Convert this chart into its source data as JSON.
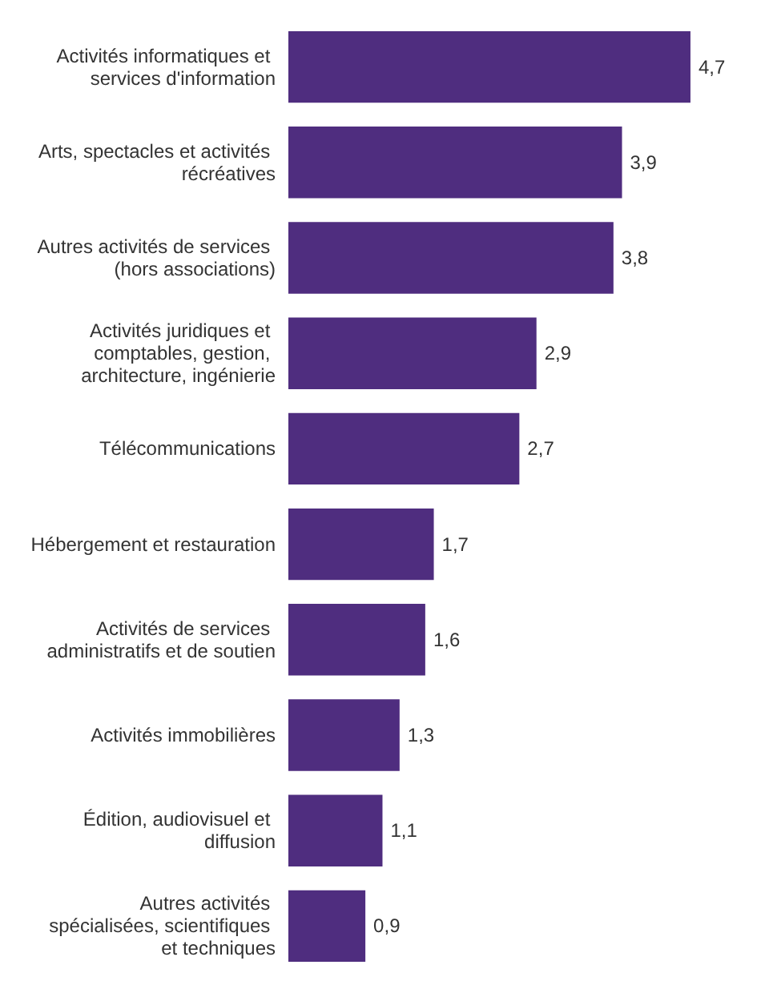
{
  "chart_data": {
    "type": "bar",
    "orientation": "horizontal",
    "relative": false,
    "categories": [
      "Activités informatiques et services d'information",
      "Arts, spectacles et activités récréatives",
      "Autres activités de services (hors associations)",
      "Activités juridiques et comptables, gestion, architecture, ingénierie",
      "Télécommunications",
      "Hébergement et restauration",
      "Activités de services administratifs et de soutien",
      "Activités immobilières",
      "Édition, audiovisuel et diffusion",
      "Autres activités spécialisées, scientifiques et techniques"
    ],
    "values": [
      4.7,
      3.9,
      3.8,
      2.9,
      2.7,
      1.7,
      1.6,
      1.3,
      1.1,
      0.9
    ],
    "value_labels": [
      "4,7",
      "3,9",
      "3,8",
      "2,9",
      "2,7",
      "1,7",
      "1,6",
      "1,3",
      "1,1",
      "0,9"
    ],
    "color": "#4f2d7f"
  }
}
